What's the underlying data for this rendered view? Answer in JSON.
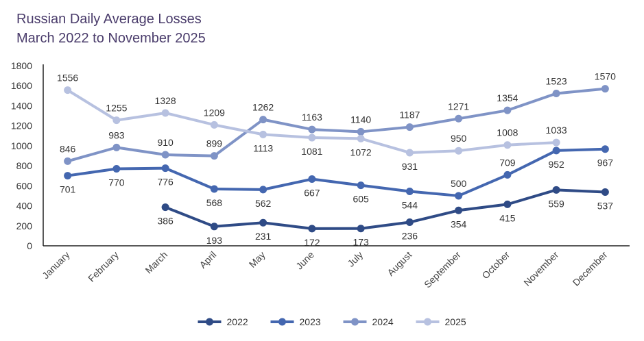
{
  "chart_data": {
    "type": "line",
    "title": "Russian Daily Average Losses",
    "subtitle": "March 2022 to November 2025",
    "xlabel": "",
    "ylabel": "",
    "ylim": [
      0,
      1800
    ],
    "yticks": [
      0,
      200,
      400,
      600,
      800,
      1000,
      1200,
      1400,
      1600,
      1800
    ],
    "grid": false,
    "legend": "bottom",
    "categories": [
      "January",
      "February",
      "March",
      "April",
      "May",
      "June",
      "July",
      "August",
      "September",
      "October",
      "November",
      "December"
    ],
    "series": [
      {
        "name": "2022",
        "color": "#2f4b86",
        "values": [
          null,
          null,
          386,
          193,
          231,
          172,
          173,
          236,
          354,
          415,
          559,
          537
        ]
      },
      {
        "name": "2023",
        "color": "#4467b0",
        "values": [
          701,
          770,
          776,
          568,
          562,
          667,
          605,
          544,
          500,
          709,
          952,
          967
        ]
      },
      {
        "name": "2024",
        "color": "#7f93c6",
        "values": [
          846,
          983,
          910,
          899,
          1262,
          1163,
          1140,
          1187,
          1271,
          1354,
          1523,
          1570
        ]
      },
      {
        "name": "2025",
        "color": "#b7c1e0",
        "values": [
          1556,
          1255,
          1328,
          1209,
          1113,
          1081,
          1072,
          931,
          950,
          1008,
          1033,
          null
        ]
      }
    ]
  }
}
